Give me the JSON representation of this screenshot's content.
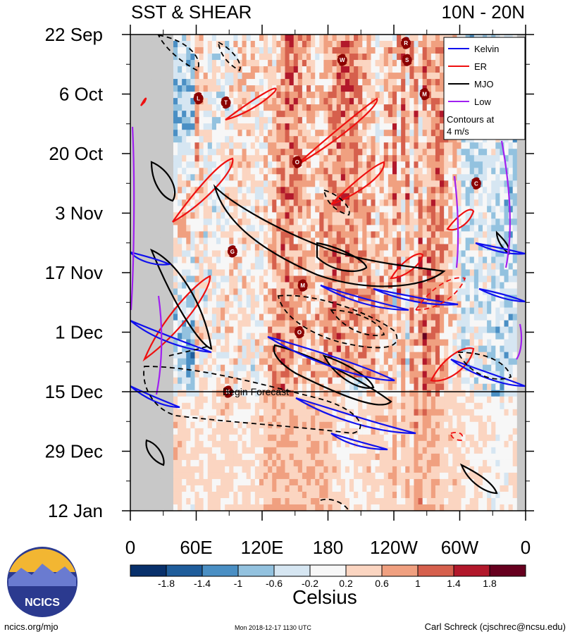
{
  "title_left": "SST & SHEAR",
  "title_right": "10N - 20N",
  "footer": {
    "left": "ncics.org/mjo",
    "center": "Mon 2018-12-17 1130 UTC",
    "right": "Carl Schreck (cjschrec@ncsu.edu)"
  },
  "logo_text": "NCICS",
  "chart_data": {
    "type": "heatmap",
    "title": "SST & SHEAR",
    "subtitle": "10N - 20N",
    "x_tick_labels": [
      "0",
      "60E",
      "120E",
      "180",
      "120W",
      "60W",
      "0"
    ],
    "x_tick_values_deg_east": [
      0,
      60,
      120,
      180,
      240,
      300,
      360
    ],
    "y_tick_labels": [
      "22 Sep",
      "6 Oct",
      "20 Oct",
      "3 Nov",
      "17 Nov",
      "1 Dec",
      "15 Dec",
      "29 Dec",
      "12 Jan"
    ],
    "y_range": [
      "2018-09-22",
      "2019-01-12"
    ],
    "forecast_line": {
      "date": "2018-12-15",
      "label": "Begin Forecast"
    },
    "colorbar": {
      "label": "Celsius",
      "tick_labels": [
        "-1.8",
        "-1.4",
        "-1",
        "-0.6",
        "-0.2",
        "0.2",
        "0.6",
        "1",
        "1.4",
        "1.8"
      ],
      "colors": [
        "#08306b",
        "#1f5d9b",
        "#4a8fc4",
        "#93c2df",
        "#d6e6f2",
        "#f7f7f7",
        "#fbd5c1",
        "#f0a080",
        "#d6604d",
        "#b2182b",
        "#67001f"
      ]
    },
    "legend": {
      "entries": [
        {
          "name": "Kelvin",
          "color": "#1010ee"
        },
        {
          "name": "ER",
          "color": "#ee1010"
        },
        {
          "name": "MJO",
          "color": "#000000"
        },
        {
          "name": "Low",
          "color": "#a020f0"
        }
      ],
      "note_lines": [
        "Contours at",
        "4 m/s"
      ],
      "placement": "top-right"
    },
    "storms": [
      {
        "label": "R",
        "lon": 251,
        "date": "2018-09-24"
      },
      {
        "label": "S",
        "lon": 252,
        "date": "2018-09-28"
      },
      {
        "label": "W",
        "lon": 193,
        "date": "2018-09-28"
      },
      {
        "label": "M",
        "lon": 268,
        "date": "2018-10-06"
      },
      {
        "label": "L",
        "lon": 62,
        "date": "2018-10-07"
      },
      {
        "label": "T",
        "lon": 87,
        "date": "2018-10-08"
      },
      {
        "label": "O",
        "lon": 152,
        "date": "2018-10-22"
      },
      {
        "label": "C",
        "lon": 315,
        "date": "2018-10-27"
      },
      {
        "label": "G",
        "lon": 93,
        "date": "2018-11-12"
      },
      {
        "label": "M",
        "lon": 157,
        "date": "2018-11-20"
      },
      {
        "label": "O",
        "lon": 154,
        "date": "2018-12-01"
      },
      {
        "label": "K",
        "lon": 89,
        "date": "2018-12-15"
      }
    ]
  }
}
